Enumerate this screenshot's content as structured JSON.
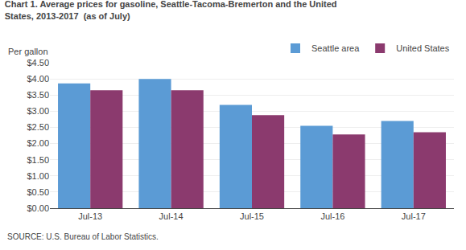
{
  "chart_data": {
    "type": "bar",
    "title": "Chart 1. Average prices for gasoline, Seattle-Tacoma-Bremerton and the United\nStates, 2013-2017  (as of July)",
    "ylabel": "Per gallon",
    "source": "SOURCE: U.S. Bureau of Labor Statistics.",
    "categories": [
      "Jul-13",
      "Jul-14",
      "Jul-15",
      "Jul-16",
      "Jul-17"
    ],
    "series": [
      {
        "name": "Seattle area",
        "color": "#5B9BD5",
        "values": [
          3.857,
          3.999,
          3.195,
          2.549,
          2.699
        ]
      },
      {
        "name": "United States",
        "color": "#8B3A6E",
        "values": [
          3.649,
          3.649,
          2.879,
          2.279,
          2.349
        ]
      }
    ],
    "ylim": [
      0,
      4.5
    ],
    "yticks": [
      {
        "value": 0.0,
        "label": "$0.00"
      },
      {
        "value": 0.5,
        "label": "$0.50"
      },
      {
        "value": 1.0,
        "label": "$1.00"
      },
      {
        "value": 1.5,
        "label": "$1.50"
      },
      {
        "value": 2.0,
        "label": "$2.00"
      },
      {
        "value": 2.5,
        "label": "$2.50"
      },
      {
        "value": 3.0,
        "label": "$3.00"
      },
      {
        "value": 3.5,
        "label": "$3.50"
      },
      {
        "value": 4.0,
        "label": "$4.00"
      },
      {
        "value": 4.5,
        "label": "$4.50"
      }
    ],
    "grid": true,
    "legend": "upper right"
  }
}
